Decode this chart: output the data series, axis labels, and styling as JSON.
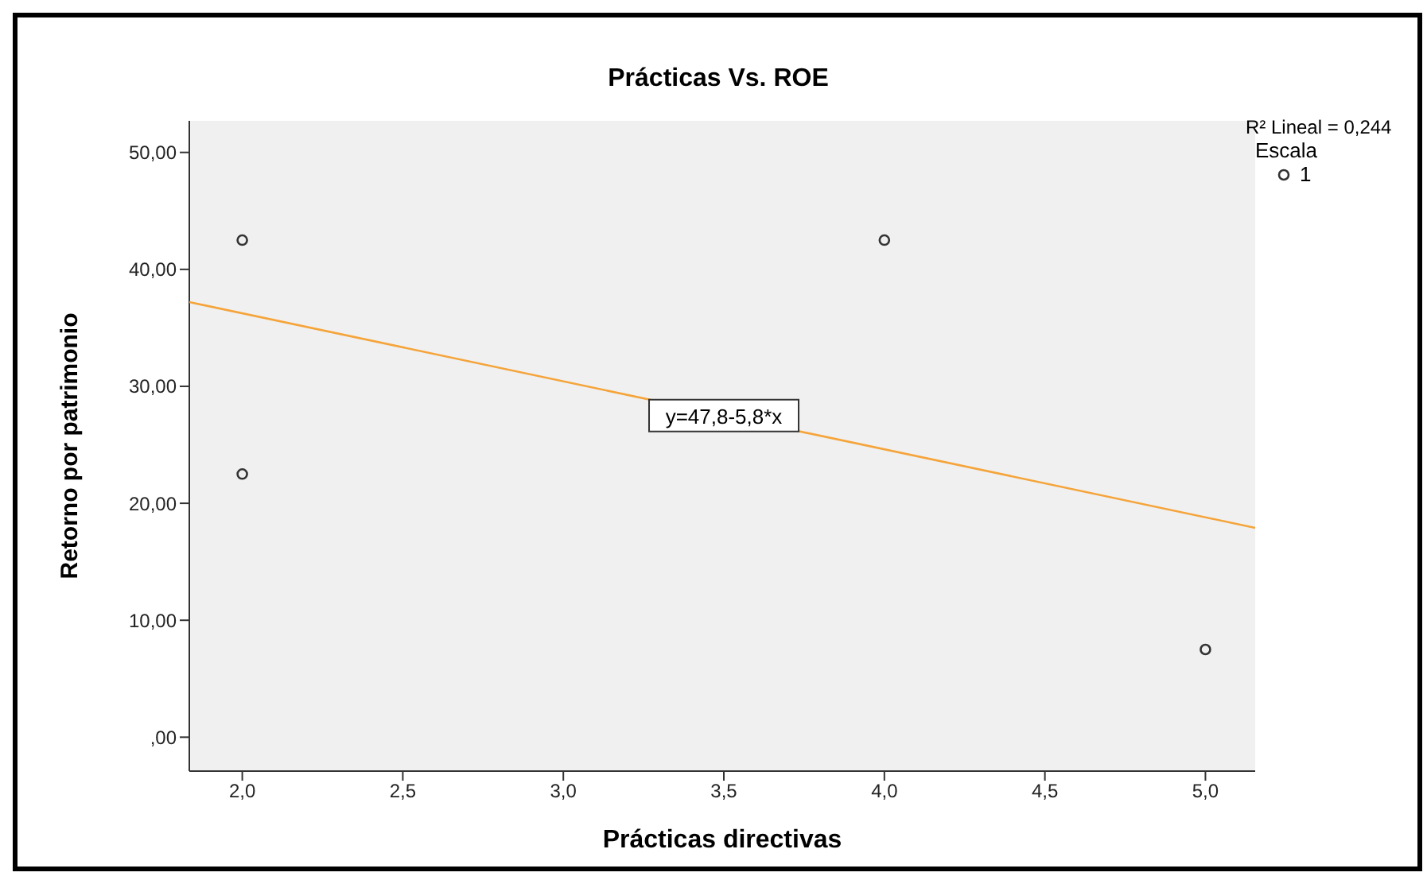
{
  "chart_data": {
    "type": "scatter",
    "title": "Prácticas Vs. ROE",
    "xlabel": "Prácticas directivas",
    "ylabel": "Retorno por patrimonio",
    "legend_title": "Escala",
    "annotations": [
      "R² Lineal = 0,244",
      {
        "text": "y=47,8-5,8*x",
        "x": 3.5,
        "y": 27.5
      }
    ],
    "series": [
      {
        "name": "1",
        "color": "#333333",
        "marker": "circle",
        "x": [
          2,
          2,
          4,
          5
        ],
        "values": [
          42.5,
          22.5,
          42.5,
          7.5
        ]
      },
      {
        "type": "line",
        "color": "#f5a43a",
        "marker": "none",
        "x": [
          1.835,
          5.155
        ],
        "values": [
          37.2,
          17.9
        ]
      }
    ],
    "xlim": [
      1.835,
      5.155
    ],
    "ylim": [
      -2.9,
      52.7
    ],
    "xticks": [
      {
        "value": 2,
        "label": "2,0"
      },
      {
        "value": 2.5,
        "label": "2,5"
      },
      {
        "value": 3,
        "label": "3,0"
      },
      {
        "value": 3.5,
        "label": "3,5"
      },
      {
        "value": 4,
        "label": "4,0"
      },
      {
        "value": 4.5,
        "label": "4,5"
      },
      {
        "value": 5,
        "label": "5,0"
      }
    ],
    "yticks": [
      {
        "value": 0,
        "label": ",00"
      },
      {
        "value": 10,
        "label": "10,00"
      },
      {
        "value": 20,
        "label": "20,00"
      },
      {
        "value": 30,
        "label": "30,00"
      },
      {
        "value": 40,
        "label": "40,00"
      },
      {
        "value": 50,
        "label": "50,00"
      }
    ],
    "grid": false,
    "legend": "top right"
  }
}
